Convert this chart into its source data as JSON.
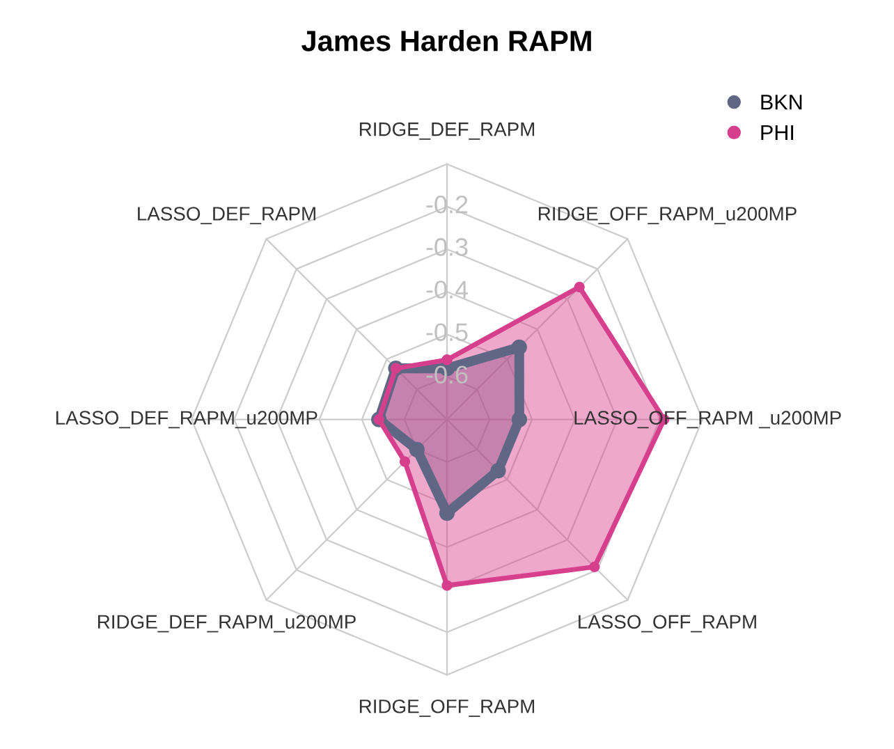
{
  "chart_data": {
    "type": "radar",
    "title": "James Harden RAPM",
    "categories": [
      "RIDGE_DEF_RAPM",
      "RIDGE_OFF_RAPM_u200MP",
      "LASSO_OFF_RAPM _u200MP",
      "LASSO_OFF_RAPM",
      "RIDGE_OFF_RAPM",
      "RIDGE_DEF_RAPM_u200MP",
      "LASSO_DEF_RAPM_u200MP",
      "LASSO_DEF_RAPM"
    ],
    "series": [
      {
        "name": "BKN",
        "color": "#5f6784",
        "values": [
          -0.58,
          -0.46,
          -0.53,
          -0.53,
          -0.48,
          -0.6,
          -0.54,
          -0.53
        ]
      },
      {
        "name": "PHI",
        "color": "#d63f8c",
        "values": [
          -0.56,
          -0.26,
          -0.19,
          -0.21,
          -0.31,
          -0.56,
          -0.54,
          -0.53
        ]
      }
    ],
    "ylim": [
      -0.7,
      -0.1
    ],
    "yticks": [
      -0.6,
      -0.5,
      -0.4,
      -0.3,
      -0.2
    ],
    "grid": true,
    "legend": "top right",
    "marker": "circle",
    "line_style": "solid"
  }
}
